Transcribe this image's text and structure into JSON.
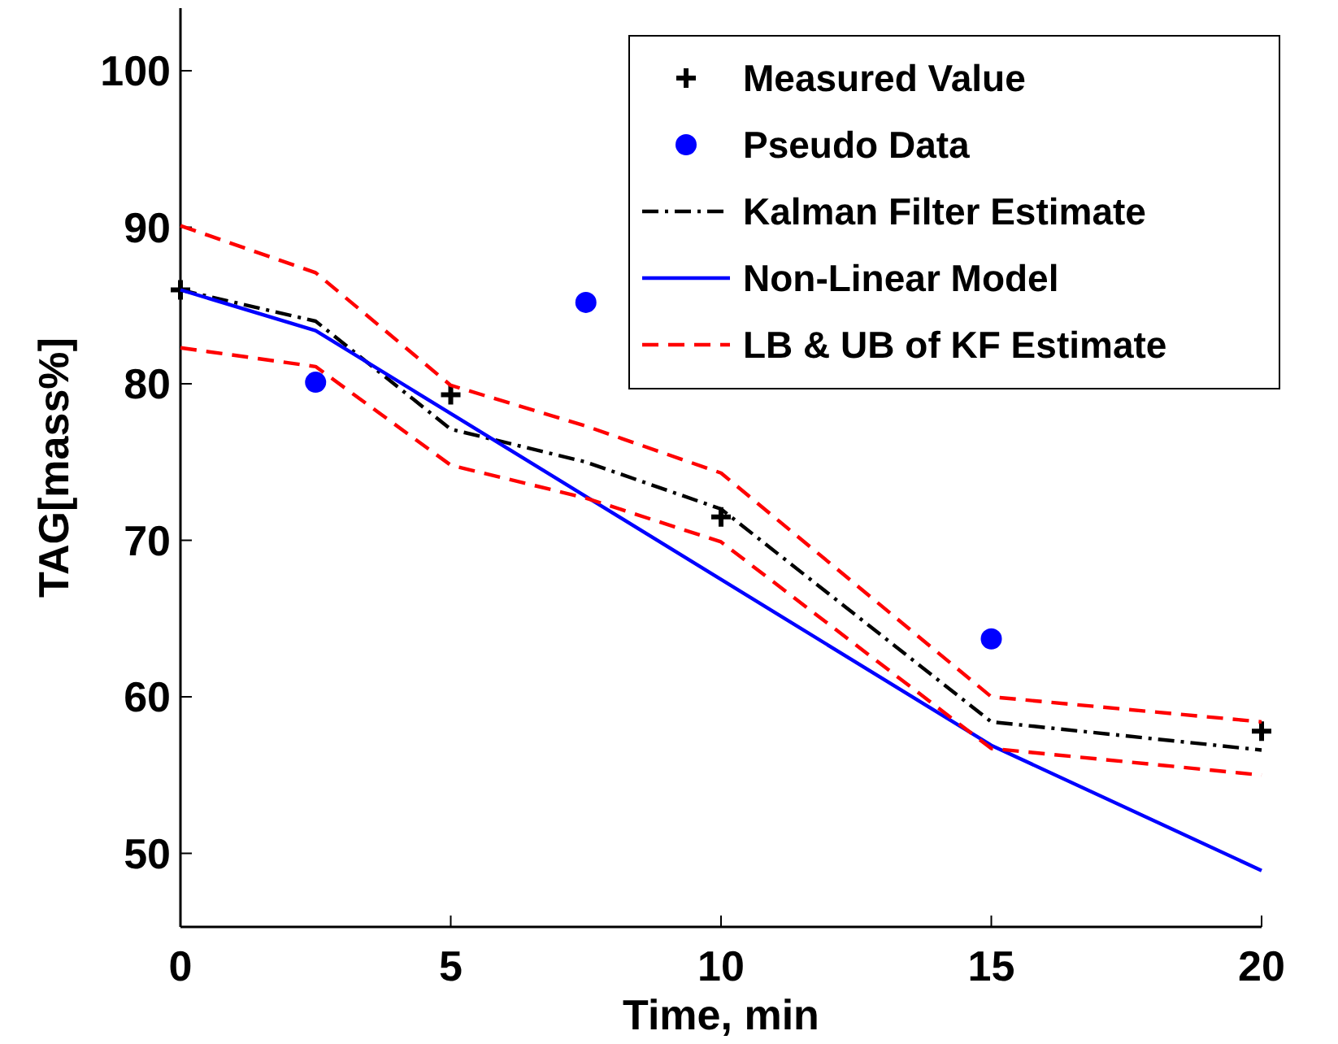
{
  "chart_data": {
    "type": "line",
    "xlabel": "Time, min",
    "ylabel": "TAG[mass%]",
    "xlim": [
      0,
      20
    ],
    "ylim": [
      45.3,
      104
    ],
    "xticks": [
      0,
      5,
      10,
      15,
      20
    ],
    "yticks": [
      50,
      60,
      70,
      80,
      90,
      100
    ],
    "grid": false,
    "legend": "top right",
    "series": [
      {
        "name": "Measured Value",
        "type": "scatter",
        "marker": "cross",
        "color": "#000000",
        "x": [
          0,
          5,
          10,
          20
        ],
        "values": [
          86,
          79.3,
          71.5,
          57.8
        ]
      },
      {
        "name": "Pseudo Data",
        "type": "scatter",
        "marker": "circle",
        "color": "#0000ff",
        "x": [
          2.5,
          7.5,
          15
        ],
        "values": [
          80.1,
          85.2,
          63.7
        ]
      },
      {
        "name": "Kalman Filter Estimate",
        "type": "line",
        "line_style": "dashdot",
        "color": "#000000",
        "x": [
          0,
          2.5,
          5,
          7.5,
          10,
          15,
          20
        ],
        "values": [
          86,
          84,
          77.1,
          75,
          72,
          58.4,
          56.6
        ]
      },
      {
        "name": "Non-Linear Model",
        "type": "line",
        "line_style": "solid",
        "color": "#0000ff",
        "x": [
          0,
          2.5,
          5,
          7.5,
          10,
          15,
          20
        ],
        "values": [
          86,
          83.4,
          78.1,
          72.8,
          67.5,
          56.9,
          48.9
        ]
      },
      {
        "name": "LB & UB of KF Estimate",
        "type": "line",
        "line_style": "dashed",
        "color": "#ff0000",
        "x": [
          0,
          2.5,
          5,
          7.5,
          10,
          15,
          20
        ],
        "values": [
          90.1,
          87.1,
          79.9,
          77.3,
          74.3,
          60,
          58.4
        ]
      },
      {
        "type": "line",
        "line_style": "dashed",
        "color": "#ff0000",
        "x": [
          0,
          2.5,
          5,
          7.5,
          10,
          15,
          20
        ],
        "values": [
          82.3,
          81.1,
          74.8,
          72.7,
          69.9,
          56.7,
          55
        ]
      }
    ]
  }
}
